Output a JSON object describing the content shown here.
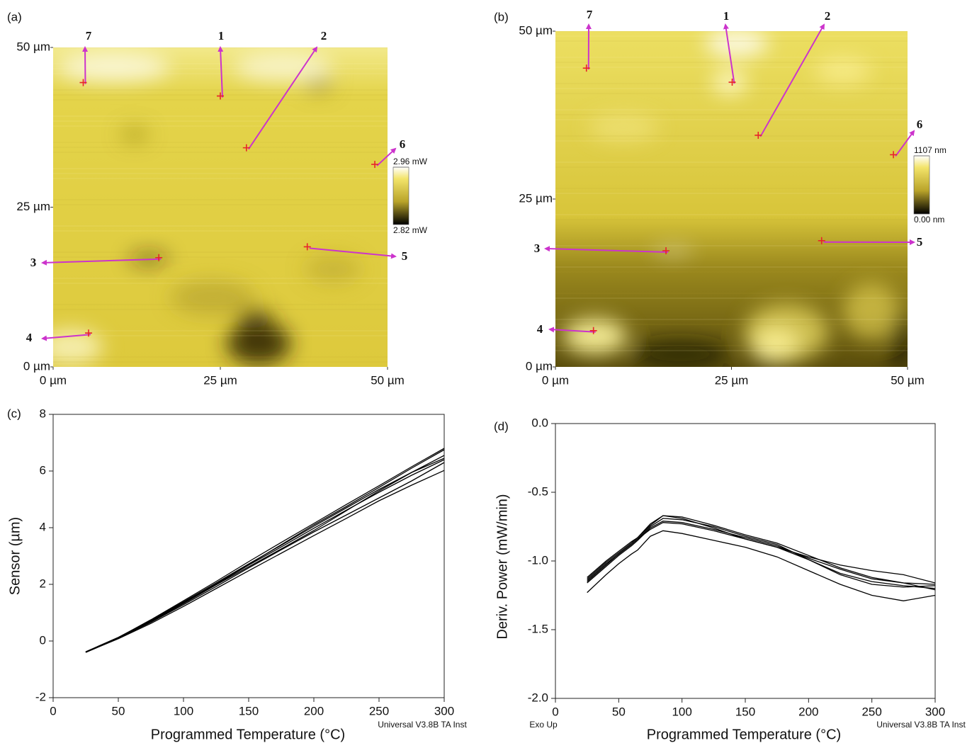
{
  "chart_data": [
    {
      "type": "image",
      "panel": "(a)",
      "xlim": [
        0,
        50
      ],
      "ylim": [
        0,
        50
      ],
      "xticks": [
        {
          "value": 0,
          "label": "0 µm"
        },
        {
          "value": 25,
          "label": "25 µm"
        },
        {
          "value": 50,
          "label": "50 µm"
        }
      ],
      "yticks": [
        {
          "value": 0,
          "label": "0 µm"
        },
        {
          "value": 25,
          "label": "25 µm"
        },
        {
          "value": 50,
          "label": "50 µm"
        }
      ],
      "colorbar": {
        "lim": [
          2.82,
          2.96
        ],
        "ticks": [
          {
            "value": 2.96,
            "label": "2.96 mW"
          },
          {
            "value": 2.82,
            "label": "2.82 mW"
          }
        ]
      },
      "point_color": "#e8232a",
      "arrow_color": "#cc33cc",
      "points": [
        {
          "label": "1",
          "x": 25,
          "y": 42.4
        },
        {
          "label": "2",
          "x": 28.9,
          "y": 34.3
        },
        {
          "label": "3",
          "x": 15.8,
          "y": 17.1
        },
        {
          "label": "4",
          "x": 5.3,
          "y": 5.3
        },
        {
          "label": "5",
          "x": 38,
          "y": 18.8
        },
        {
          "label": "6",
          "x": 48.1,
          "y": 31.7
        },
        {
          "label": "7",
          "x": 4.5,
          "y": 44.5
        }
      ]
    },
    {
      "type": "image",
      "panel": "(b)",
      "xlim": [
        0,
        50
      ],
      "ylim": [
        0,
        50
      ],
      "xticks": [
        {
          "value": 0,
          "label": "0 µm"
        },
        {
          "value": 25,
          "label": "25 µm"
        },
        {
          "value": 50,
          "label": "50 µm"
        }
      ],
      "yticks": [
        {
          "value": 0,
          "label": "0 µm"
        },
        {
          "value": 25,
          "label": "25 µm"
        },
        {
          "value": 50,
          "label": "50 µm"
        }
      ],
      "colorbar": {
        "lim": [
          0,
          1107
        ],
        "ticks": [
          {
            "value": 1107,
            "label": "1107 nm"
          },
          {
            "value": 0,
            "label": "0.00 nm"
          }
        ]
      },
      "point_color": "#e8232a",
      "arrow_color": "#cc33cc",
      "points": [
        {
          "label": "1",
          "x": 25.1,
          "y": 42.4
        },
        {
          "label": "2",
          "x": 28.8,
          "y": 34.5
        },
        {
          "label": "3",
          "x": 15.7,
          "y": 17.3
        },
        {
          "label": "4",
          "x": 5.4,
          "y": 5.4
        },
        {
          "label": "5",
          "x": 37.8,
          "y": 18.8
        },
        {
          "label": "6",
          "x": 48,
          "y": 31.6
        },
        {
          "label": "7",
          "x": 4.4,
          "y": 44.5
        }
      ]
    },
    {
      "type": "line",
      "panel": "(c)",
      "xlabel": "Programmed Temperature (°C)",
      "ylabel": "Sensor (µm)",
      "annotations": [
        "Universal V3.8B TA Inst"
      ],
      "xlim": [
        0,
        300
      ],
      "ylim": [
        -2,
        8
      ],
      "xticks": [
        0,
        50,
        100,
        150,
        200,
        250,
        300
      ],
      "yticks": [
        -2,
        0,
        2,
        4,
        6,
        8
      ],
      "x": [
        25,
        50,
        75,
        100,
        125,
        150,
        175,
        200,
        225,
        250,
        275,
        300
      ],
      "series": [
        {
          "color": "#000000",
          "values": [
            -0.4,
            0.1,
            0.68,
            1.32,
            1.98,
            2.62,
            3.25,
            3.9,
            4.6,
            5.3,
            5.95,
            6.55
          ]
        },
        {
          "color": "#000000",
          "values": [
            -0.38,
            0.12,
            0.72,
            1.38,
            2.05,
            2.72,
            3.38,
            4.05,
            4.7,
            5.35,
            5.95,
            6.45
          ]
        },
        {
          "color": "#000000",
          "values": [
            -0.4,
            0.08,
            0.62,
            1.22,
            1.85,
            2.48,
            3.1,
            3.72,
            4.33,
            4.95,
            5.5,
            6.02
          ]
        },
        {
          "color": "#000000",
          "values": [
            -0.39,
            0.12,
            0.75,
            1.42,
            2.1,
            2.8,
            3.48,
            4.15,
            4.82,
            5.48,
            6.15,
            6.8
          ]
        },
        {
          "color": "#000000",
          "values": [
            -0.38,
            0.13,
            0.73,
            1.38,
            2.04,
            2.7,
            3.4,
            4.1,
            4.75,
            5.42,
            6.1,
            6.75
          ]
        },
        {
          "color": "#000000",
          "values": [
            -0.4,
            0.1,
            0.66,
            1.28,
            1.92,
            2.58,
            3.22,
            3.85,
            4.45,
            5.05,
            5.65,
            6.3
          ]
        },
        {
          "color": "#000000",
          "values": [
            -0.39,
            0.1,
            0.7,
            1.35,
            2.0,
            2.68,
            3.32,
            3.98,
            4.62,
            5.25,
            5.85,
            6.4
          ]
        }
      ]
    },
    {
      "type": "line",
      "panel": "(d)",
      "xlabel": "Programmed Temperature (°C)",
      "ylabel": "Deriv. Power (mW/min)",
      "annotations": [
        "Exo Up",
        "Universal V3.8B TA Inst"
      ],
      "xlim": [
        0,
        300
      ],
      "ylim": [
        -2,
        0
      ],
      "xticks": [
        0,
        50,
        100,
        150,
        200,
        250,
        300
      ],
      "yticks": [
        {
          "value": 0,
          "label": "0.0"
        },
        -0.5,
        {
          "value": -1,
          "label": "-1.0"
        },
        -1.5,
        {
          "value": -2,
          "label": "-2.0"
        }
      ],
      "x": [
        25,
        40,
        50,
        60,
        65,
        75,
        85,
        100,
        125,
        150,
        175,
        200,
        225,
        250,
        275,
        300
      ],
      "series": [
        {
          "color": "#000000",
          "values": [
            -1.12,
            -1.0,
            -0.93,
            -0.86,
            -0.83,
            -0.73,
            -0.67,
            -0.68,
            -0.74,
            -0.81,
            -0.87,
            -0.96,
            -1.05,
            -1.12,
            -1.16,
            -1.17
          ]
        },
        {
          "color": "#000000",
          "values": [
            -1.14,
            -1.02,
            -0.95,
            -0.88,
            -0.84,
            -0.75,
            -0.69,
            -0.7,
            -0.75,
            -0.82,
            -0.88,
            -0.99,
            -1.09,
            -1.15,
            -1.18,
            -1.2
          ]
        },
        {
          "color": "#000000",
          "values": [
            -1.13,
            -1.01,
            -0.94,
            -0.87,
            -0.83,
            -0.74,
            -0.67,
            -0.69,
            -0.76,
            -0.84,
            -0.9,
            -0.97,
            -1.03,
            -1.07,
            -1.1,
            -1.16
          ]
        },
        {
          "color": "#000000",
          "values": [
            -1.16,
            -1.04,
            -0.96,
            -0.89,
            -0.85,
            -0.76,
            -0.71,
            -0.72,
            -0.77,
            -0.83,
            -0.89,
            -0.98,
            -1.06,
            -1.13,
            -1.16,
            -1.21
          ]
        },
        {
          "color": "#000000",
          "values": [
            -1.15,
            -1.03,
            -0.95,
            -0.88,
            -0.84,
            -0.77,
            -0.72,
            -0.73,
            -0.78,
            -0.84,
            -0.9,
            -0.99,
            -1.1,
            -1.17,
            -1.19,
            -1.18
          ]
        },
        {
          "color": "#000000",
          "values": [
            -1.23,
            -1.1,
            -1.02,
            -0.95,
            -0.92,
            -0.82,
            -0.78,
            -0.8,
            -0.85,
            -0.9,
            -0.97,
            -1.07,
            -1.17,
            -1.25,
            -1.29,
            -1.25
          ]
        }
      ]
    }
  ]
}
